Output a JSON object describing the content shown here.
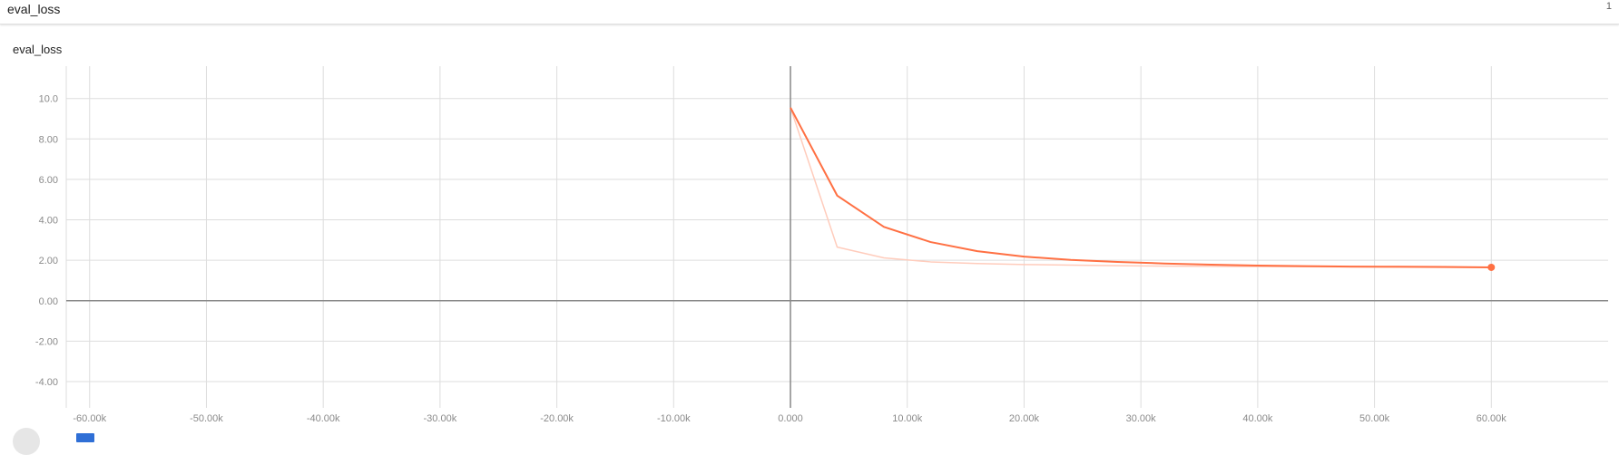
{
  "header": {
    "title": "eval_loss",
    "count": "1"
  },
  "card": {
    "title": "eval_loss"
  },
  "colors": {
    "series": "#ff7043",
    "series_raw": "#ffccbc",
    "grid": "#dddddd",
    "axis": "#888888",
    "tick_text": "#8a8a8a"
  },
  "chart_data": {
    "type": "line",
    "title": "eval_loss",
    "xlabel": "",
    "ylabel": "",
    "xlim": [
      -62000,
      70000
    ],
    "ylim": [
      -5.3,
      11.6
    ],
    "grid": true,
    "x_ticks": [
      -60000,
      -50000,
      -40000,
      -30000,
      -20000,
      -10000,
      0,
      10000,
      20000,
      30000,
      40000,
      50000,
      60000
    ],
    "x_tick_labels": [
      "-60.00k",
      "-50.00k",
      "-40.00k",
      "-30.00k",
      "-20.00k",
      "-10.00k",
      "0.000",
      "10.00k",
      "20.00k",
      "30.00k",
      "40.00k",
      "50.00k",
      "60.00k"
    ],
    "y_ticks": [
      10,
      8,
      6,
      4,
      2,
      0,
      -2,
      -4
    ],
    "y_tick_labels": [
      "10.0",
      "8.00",
      "6.00",
      "4.00",
      "2.00",
      "0.00",
      "-2.00",
      "-4.00"
    ],
    "series": [
      {
        "role": "smoothed",
        "x": [
          0,
          4000,
          8000,
          12000,
          16000,
          20000,
          24000,
          28000,
          32000,
          36000,
          40000,
          44000,
          48000,
          52000,
          56000,
          60000
        ],
        "values": [
          9.55,
          5.2,
          3.65,
          2.9,
          2.45,
          2.18,
          2.02,
          1.92,
          1.84,
          1.78,
          1.74,
          1.71,
          1.69,
          1.68,
          1.67,
          1.65
        ]
      },
      {
        "role": "raw",
        "x": [
          0,
          4000,
          8000,
          12000,
          16000,
          20000,
          24000,
          28000,
          32000,
          36000,
          40000,
          44000,
          48000,
          52000,
          56000,
          60000
        ],
        "values": [
          9.55,
          2.65,
          2.12,
          1.92,
          1.84,
          1.79,
          1.76,
          1.73,
          1.71,
          1.7,
          1.69,
          1.68,
          1.67,
          1.66,
          1.65,
          1.65
        ]
      }
    ]
  }
}
